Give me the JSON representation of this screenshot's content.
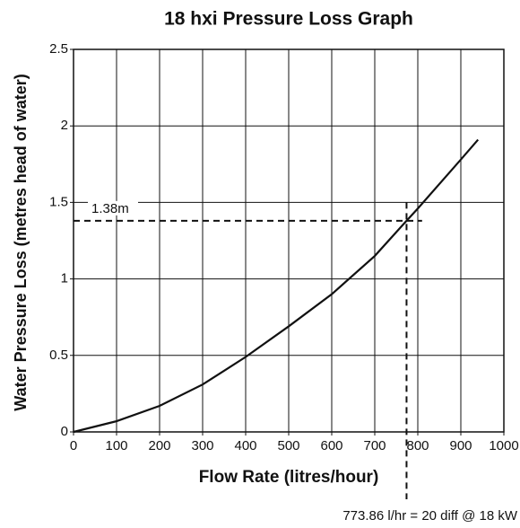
{
  "chart_data": {
    "type": "line",
    "title": "18 hxi Pressure Loss Graph",
    "x_label": "Flow Rate (litres/hour)",
    "y_label": "Water Pressure Loss (metres head of water)",
    "x": [
      0,
      100,
      200,
      300,
      400,
      500,
      600,
      700,
      773.86,
      800,
      900,
      940
    ],
    "series": [
      {
        "color": "#111111",
        "values": [
          0,
          0.07,
          0.17,
          0.31,
          0.49,
          0.69,
          0.9,
          1.15,
          1.38,
          1.46,
          1.78,
          1.91
        ]
      }
    ],
    "xlim": [
      0,
      1000
    ],
    "ylim": [
      0,
      2.5
    ],
    "xticks": [
      0,
      100,
      200,
      300,
      400,
      500,
      600,
      700,
      800,
      900,
      1000
    ],
    "yticks": [
      0,
      0.5,
      1,
      1.5,
      2,
      2.5
    ],
    "grid": true,
    "annotations": [
      {
        "text": "1.38m",
        "y": 1.38,
        "x_end": 810
      },
      {
        "text": "773.86 l/hr = 20 diff @ 18 kW",
        "x": 773.86,
        "y_top": 1.5
      }
    ]
  }
}
